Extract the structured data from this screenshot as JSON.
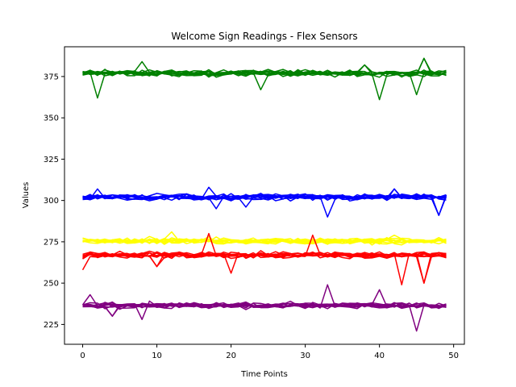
{
  "chart_data": {
    "type": "line",
    "title": "Welcome Sign Readings - Flex Sensors",
    "xlabel": "Time Points",
    "ylabel": "Values",
    "xlim": [
      -2.45,
      51.45
    ],
    "ylim": [
      213,
      393
    ],
    "x_ticks": [
      0,
      10,
      20,
      30,
      40,
      50
    ],
    "y_ticks": [
      225,
      250,
      275,
      300,
      325,
      350,
      375
    ],
    "grid": false,
    "legend": "none",
    "points_per_series": 50,
    "groups": [
      {
        "color": "#008000",
        "base": 377,
        "lines_per_group": 10,
        "spikes": [
          [
            2,
            362
          ],
          [
            8,
            384
          ],
          [
            24,
            367
          ],
          [
            40,
            361
          ],
          [
            45,
            364
          ],
          [
            46,
            386
          ],
          [
            38,
            382
          ]
        ]
      },
      {
        "color": "#0000ff",
        "base": 302,
        "lines_per_group": 10,
        "spikes": [
          [
            2,
            307
          ],
          [
            17,
            308
          ],
          [
            18,
            295
          ],
          [
            22,
            296
          ],
          [
            33,
            290
          ],
          [
            42,
            307
          ],
          [
            48,
            291
          ]
        ]
      },
      {
        "color": "#ffff00",
        "base": 275.5,
        "lines_per_group": 10,
        "spikes": [
          [
            12,
            281
          ],
          [
            17,
            278
          ],
          [
            42,
            279
          ]
        ]
      },
      {
        "color": "#ff0000",
        "base": 267,
        "lines_per_group": 10,
        "spikes": [
          [
            0,
            258
          ],
          [
            17,
            280
          ],
          [
            20,
            256
          ],
          [
            31,
            279
          ],
          [
            43,
            249
          ],
          [
            46,
            250
          ],
          [
            10,
            260
          ]
        ]
      },
      {
        "color": "#800080",
        "base": 236.5,
        "lines_per_group": 10,
        "spikes": [
          [
            1,
            243
          ],
          [
            8,
            228
          ],
          [
            33,
            249
          ],
          [
            40,
            246
          ],
          [
            45,
            221
          ],
          [
            4,
            230
          ]
        ]
      }
    ]
  }
}
